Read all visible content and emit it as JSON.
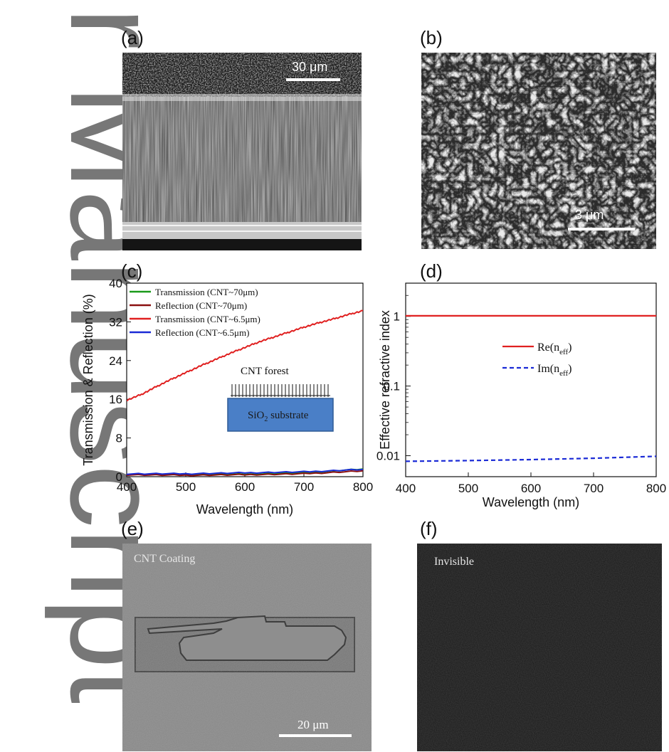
{
  "watermark": "r Manuscript",
  "panels": {
    "a": {
      "label": "(a)",
      "scale_bar": "30 μm"
    },
    "b": {
      "label": "(b)",
      "scale_bar": "3 μm"
    },
    "c": {
      "label": "(c)"
    },
    "d": {
      "label": "(d)"
    },
    "e": {
      "label": "(e)",
      "caption": "CNT Coating",
      "scale_bar": "20 μm"
    },
    "f": {
      "label": "(f)",
      "caption": "Invisible"
    }
  },
  "chart_data": [
    {
      "id": "c",
      "type": "line",
      "xlabel": "Wavelength (nm)",
      "ylabel": "Transmission & Reflection (%)",
      "xlim": [
        400,
        800
      ],
      "ylim": [
        0,
        40
      ],
      "xticks": [
        400,
        500,
        600,
        700,
        800
      ],
      "yticks": [
        0,
        8,
        16,
        24,
        32,
        40
      ],
      "legend_position": "top-left",
      "series": [
        {
          "name": "Transmission (CNT~70μm)",
          "color": "#1a9a1a",
          "x": [
            400,
            500,
            600,
            700,
            800
          ],
          "y": [
            0.5,
            0.4,
            0.5,
            0.8,
            1.6
          ]
        },
        {
          "name": "Reflection (CNT~70μm)",
          "color": "#8b1010",
          "x": [
            400,
            500,
            600,
            700,
            800
          ],
          "y": [
            0.4,
            0.3,
            0.4,
            0.6,
            1.2
          ]
        },
        {
          "name": "Transmission (CNT~6.5μm)",
          "color": "#e02020",
          "x": [
            400,
            425,
            450,
            475,
            500,
            525,
            550,
            575,
            600,
            625,
            650,
            675,
            700,
            725,
            750,
            775,
            800
          ],
          "y": [
            15.8,
            17.0,
            18.6,
            20.1,
            21.5,
            22.9,
            24.2,
            25.5,
            26.7,
            27.9,
            28.9,
            29.9,
            30.9,
            31.8,
            32.6,
            33.5,
            34.3
          ]
        },
        {
          "name": "Reflection (CNT~6.5μm)",
          "color": "#1a2ad6",
          "x": [
            400,
            500,
            600,
            700,
            800
          ],
          "y": [
            0.6,
            0.6,
            0.8,
            1.0,
            1.5
          ]
        }
      ],
      "inset": {
        "top_label": "CNT forest",
        "substrate_label": "SiO",
        "substrate_sub": "2",
        "substrate_suffix": " substrate"
      }
    },
    {
      "id": "d",
      "type": "line",
      "xlabel": "Wavelength (nm)",
      "ylabel": "Effective refractive index",
      "xlim": [
        400,
        800
      ],
      "ylim": [
        0.005,
        3
      ],
      "yscale": "log",
      "xticks": [
        400,
        500,
        600,
        700,
        800
      ],
      "yticks": [
        0.01,
        0.1,
        1
      ],
      "ytick_labels": [
        "0.01",
        "0.1",
        "1"
      ],
      "legend_position": "center",
      "series": [
        {
          "name": "Re(n",
          "sub": "eff",
          "suffix": ")",
          "color": "#e02020",
          "style": "solid",
          "x": [
            400,
            500,
            600,
            700,
            800
          ],
          "y": [
            1.02,
            1.02,
            1.02,
            1.02,
            1.02
          ]
        },
        {
          "name": "Im(n",
          "sub": "eff",
          "suffix": ")",
          "color": "#1a2ad6",
          "style": "dashed",
          "x": [
            400,
            500,
            600,
            700,
            800
          ],
          "y": [
            0.0083,
            0.0085,
            0.0088,
            0.0092,
            0.0098
          ]
        }
      ]
    }
  ]
}
